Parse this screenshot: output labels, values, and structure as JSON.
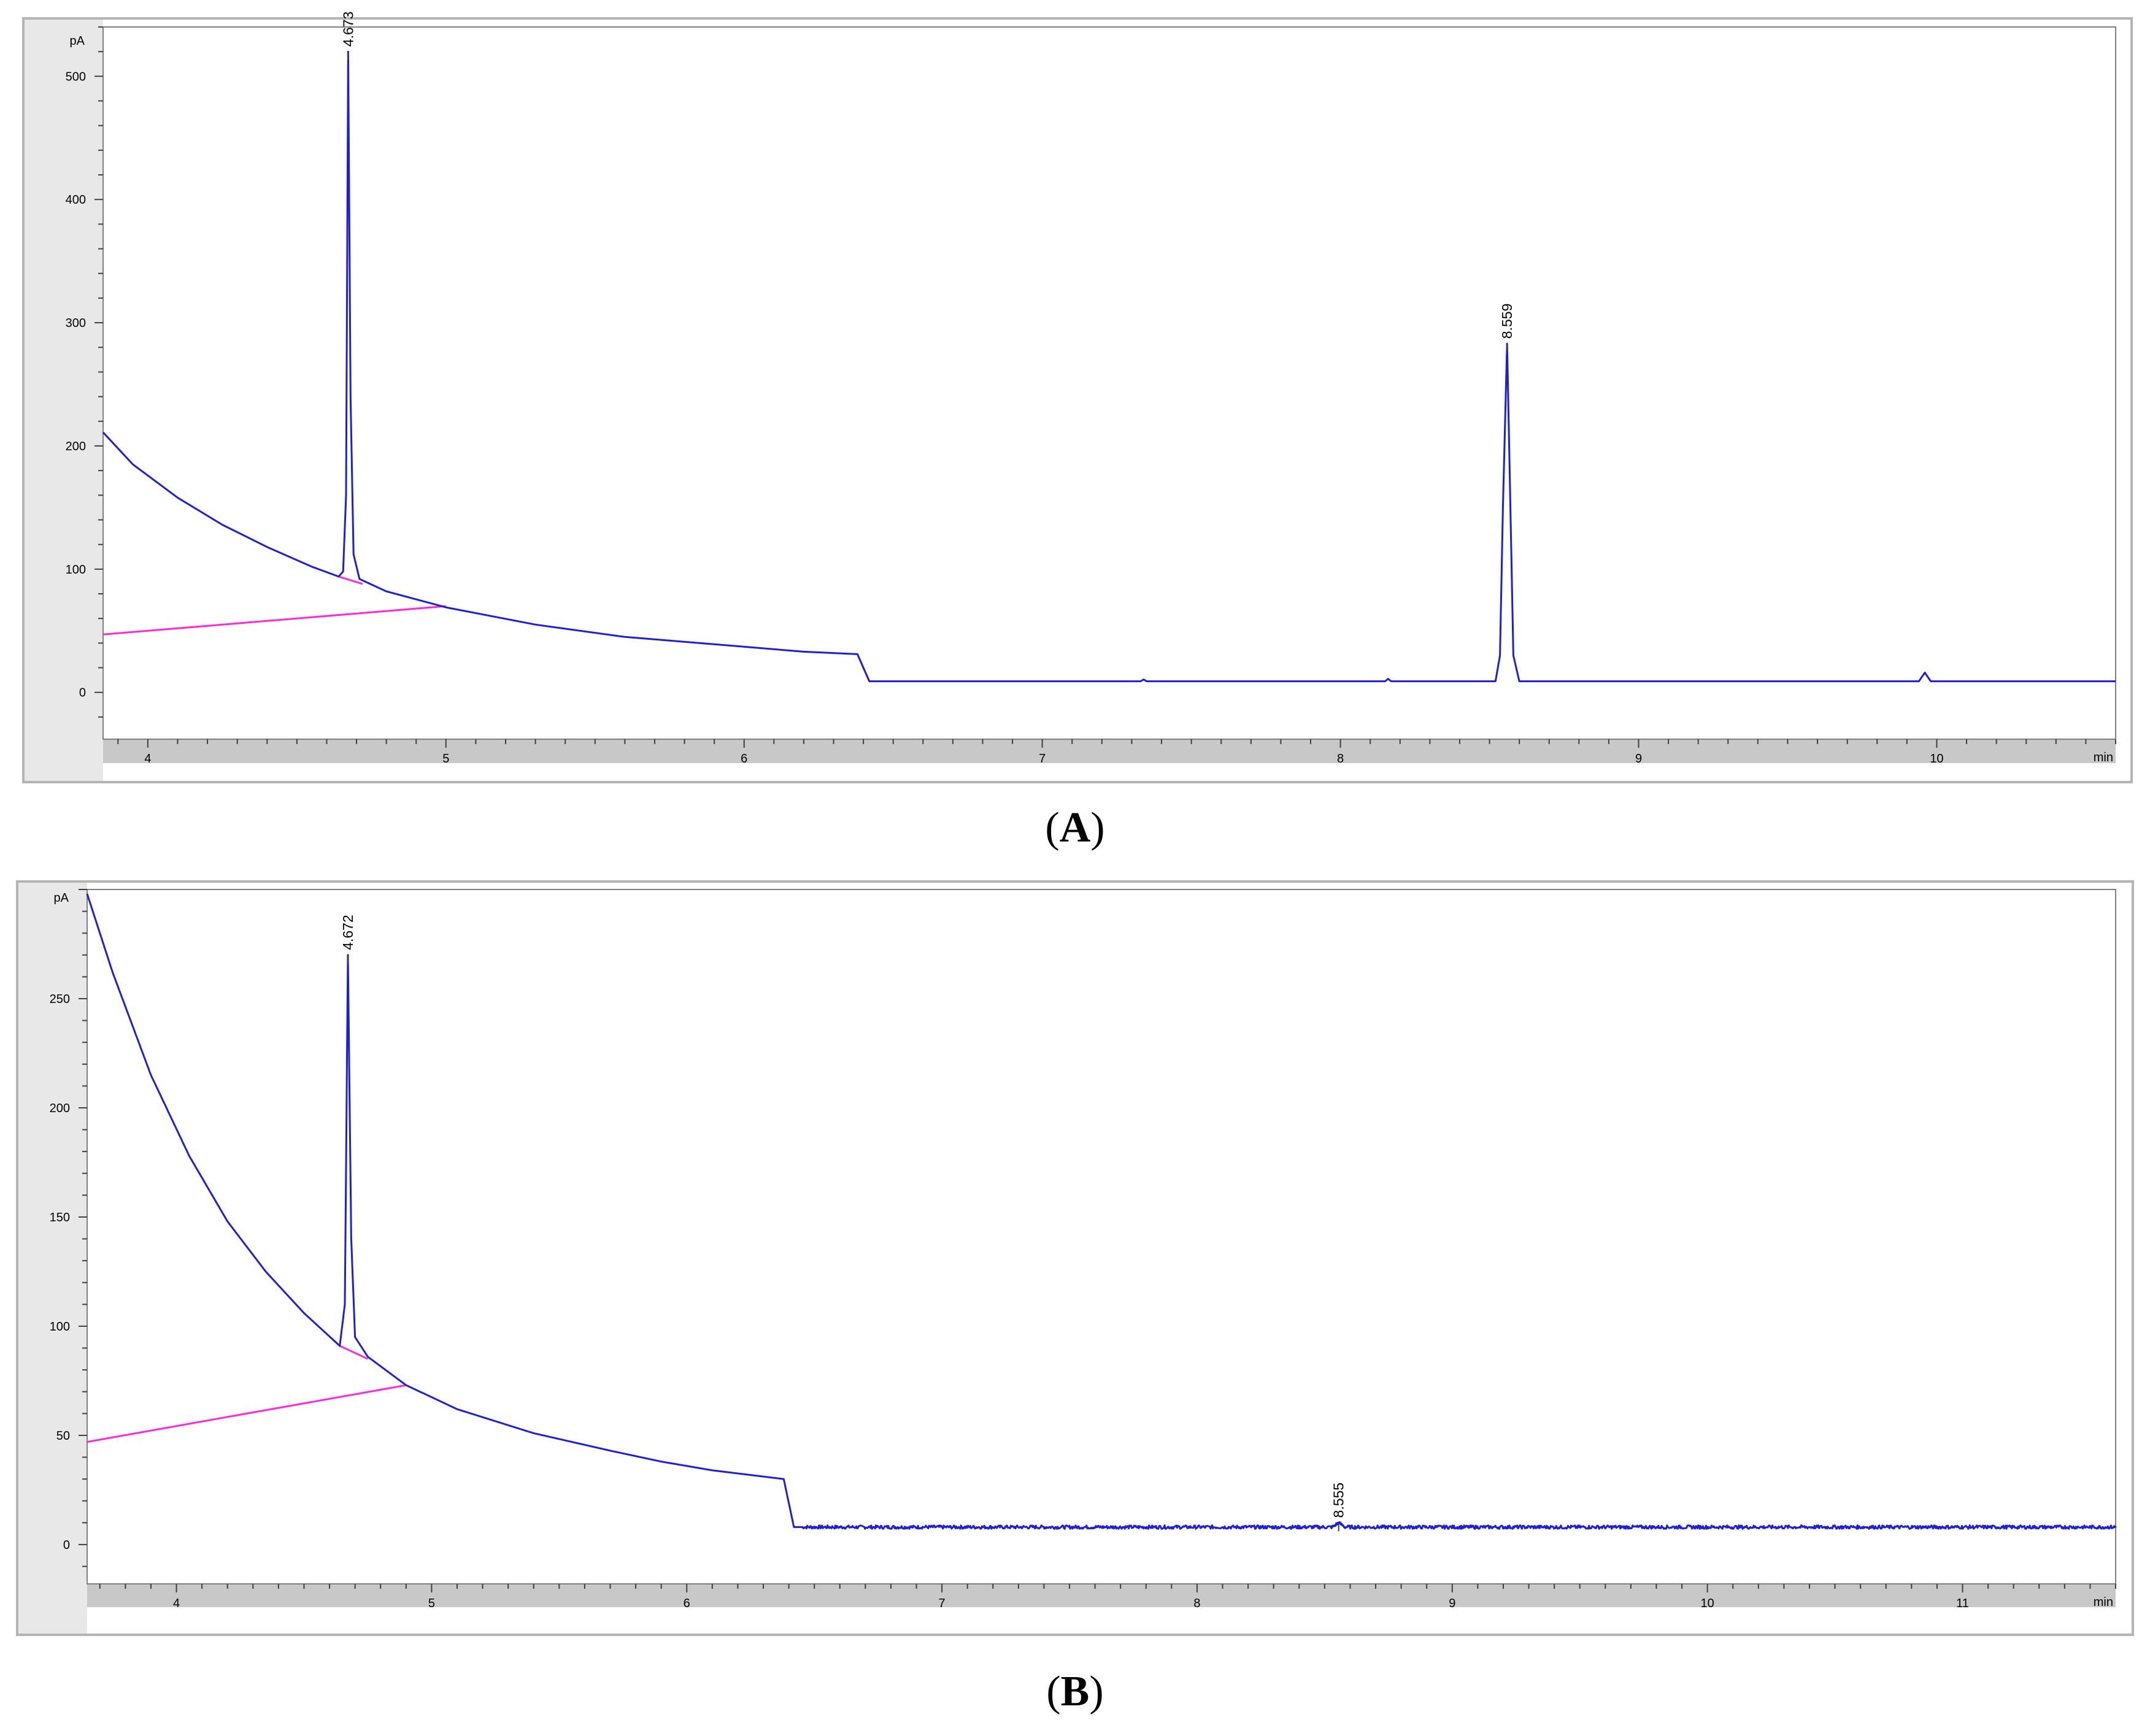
{
  "chart_data": [
    {
      "type": "line",
      "panel": "A",
      "caption_letter": "A",
      "x_unit": "min",
      "y_unit": "pA",
      "xlim": [
        3.85,
        10.6
      ],
      "ylim": [
        -38,
        540
      ],
      "x_ticks": [
        4,
        5,
        6,
        7,
        8,
        9,
        10
      ],
      "y_ticks": [
        0,
        100,
        200,
        300,
        400,
        500
      ],
      "colors": {
        "trace": "#1f1fd6",
        "baseline": "#ff2bd8",
        "frame": "#b4b4b4",
        "axis_strip": "#c8c8c8"
      },
      "series": [
        {
          "points": [
            [
              3.85,
              211
            ],
            [
              3.95,
              185
            ],
            [
              4.1,
              158
            ],
            [
              4.25,
              136
            ],
            [
              4.4,
              118
            ],
            [
              4.55,
              102
            ],
            [
              4.64,
              94
            ],
            [
              4.655,
              98
            ],
            [
              4.665,
              160
            ],
            [
              4.672,
              520
            ],
            [
              4.68,
              240
            ],
            [
              4.69,
              112
            ],
            [
              4.71,
              92
            ],
            [
              4.8,
              82
            ],
            [
              5.0,
              69
            ],
            [
              5.3,
              55
            ],
            [
              5.6,
              45
            ],
            [
              5.9,
              39
            ],
            [
              6.2,
              33
            ],
            [
              6.38,
              31
            ],
            [
              6.42,
              9
            ],
            [
              7.33,
              9
            ],
            [
              7.34,
              10.5
            ],
            [
              7.35,
              9
            ],
            [
              8.15,
              9
            ],
            [
              8.16,
              11
            ],
            [
              8.17,
              9
            ],
            [
              8.52,
              9
            ],
            [
              8.535,
              30
            ],
            [
              8.545,
              150
            ],
            [
              8.559,
              283
            ],
            [
              8.57,
              150
            ],
            [
              8.58,
              30
            ],
            [
              8.6,
              9
            ],
            [
              9.94,
              9
            ],
            [
              9.96,
              16
            ],
            [
              9.98,
              9
            ],
            [
              10.6,
              9
            ]
          ],
          "noise": false
        }
      ],
      "baselines": [
        {
          "points": [
            [
              3.85,
              47
            ],
            [
              5.0,
              70
            ]
          ]
        },
        {
          "points": [
            [
              4.64,
              94
            ],
            [
              4.72,
              88
            ]
          ]
        }
      ],
      "annotations": [
        {
          "x": 4.672,
          "y": 520,
          "text": "4.673"
        },
        {
          "x": 8.559,
          "y": 283,
          "text": "8.559"
        }
      ]
    },
    {
      "type": "line",
      "panel": "B",
      "caption_letter": "B",
      "x_unit": "min",
      "y_unit": "pA",
      "xlim": [
        3.65,
        11.6
      ],
      "ylim": [
        -18,
        300
      ],
      "x_ticks": [
        4,
        5,
        6,
        7,
        8,
        9,
        10,
        11
      ],
      "y_ticks": [
        0,
        50,
        100,
        150,
        200,
        250
      ],
      "colors": {
        "trace": "#1f1fd6",
        "baseline": "#ff2bd8",
        "frame": "#b4b4b4",
        "axis_strip": "#c8c8c8"
      },
      "series": [
        {
          "points": [
            [
              3.65,
              298
            ],
            [
              3.75,
              262
            ],
            [
              3.9,
              215
            ],
            [
              4.05,
              178
            ],
            [
              4.2,
              148
            ],
            [
              4.35,
              125
            ],
            [
              4.5,
              106
            ],
            [
              4.64,
              91
            ],
            [
              4.66,
              110
            ],
            [
              4.672,
              270
            ],
            [
              4.685,
              140
            ],
            [
              4.7,
              95
            ],
            [
              4.75,
              86
            ],
            [
              4.9,
              73
            ],
            [
              5.1,
              62
            ],
            [
              5.4,
              51
            ],
            [
              5.7,
              43
            ],
            [
              5.9,
              38
            ],
            [
              6.1,
              34
            ],
            [
              6.38,
              30
            ],
            [
              6.42,
              8
            ],
            [
              8.53,
              8
            ],
            [
              8.555,
              10
            ],
            [
              8.58,
              8
            ],
            [
              11.6,
              8
            ]
          ],
          "noise": true
        }
      ],
      "baselines": [
        {
          "points": [
            [
              3.65,
              47
            ],
            [
              4.9,
              73
            ]
          ]
        },
        {
          "points": [
            [
              4.64,
              91
            ],
            [
              4.75,
              85
            ]
          ]
        }
      ],
      "annotations": [
        {
          "x": 4.672,
          "y": 270,
          "text": "4.672"
        },
        {
          "x": 8.555,
          "y": 10,
          "text": "8.555"
        }
      ]
    }
  ]
}
